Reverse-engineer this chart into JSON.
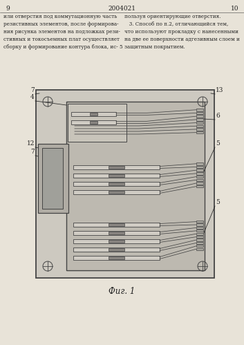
{
  "bg_color": "#e8e3d8",
  "paper_color": "#e8e3d8",
  "fig_width": 3.53,
  "fig_height": 4.99,
  "dpi": 100,
  "text_top_left": "или отверстия под коммутационную часть\nрезистивных элементов, после формирова-\nния рисунка элементов на подложках рези-\nстивных и токосъемных плат осуществляет\nсборку и формирование контура блока, ис- 5",
  "text_top_right": "пользуя ориентирующие отверстия.\n   3. Способ по п.2, отличающийся тем,\nчто используют прокладку с нанесенными\nна две ее поверхности адгезивным слоем и\nзащитным покрытием.",
  "page_num_left": "9",
  "page_num_center": "2004021",
  "page_num_right": "10",
  "caption": "Фиг. 1",
  "lc": "#444444",
  "lbl": "#222222"
}
